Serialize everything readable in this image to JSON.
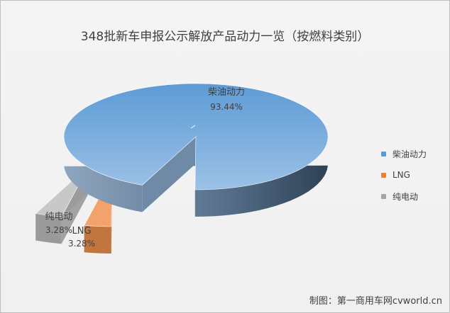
{
  "title": "348批新车申报公示解放产品动力一览（按燃料类别）",
  "source": "制图：第一商用车网cvworld.cn",
  "colors": {
    "diesel": "#5b9bd5",
    "lng": "#ed7d31",
    "electric": "#a5a5a5"
  },
  "chart_data": {
    "type": "pie",
    "title": "348批新车申报公示解放产品动力一览（按燃料类别）",
    "slices": [
      {
        "name": "柴油动力",
        "value": 93.44,
        "label": "93.44%"
      },
      {
        "name": "LNG",
        "value": 3.28,
        "label": "3.28%"
      },
      {
        "name": "纯电动",
        "value": 3.28,
        "label": "3.28%"
      }
    ],
    "legend_position": "right"
  }
}
